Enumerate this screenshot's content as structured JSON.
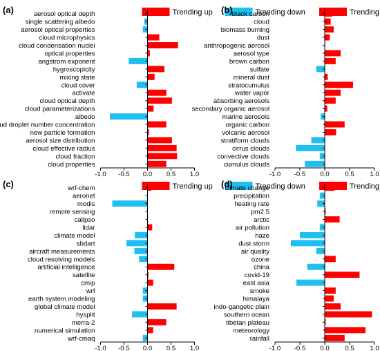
{
  "legend": {
    "up_label": "Trending up",
    "down_label": "Trending down"
  },
  "colors": {
    "up": "#ff0000",
    "down": "#1fbff2",
    "axis": "#000000"
  },
  "chart_data": [
    {
      "type": "bar",
      "orientation": "horizontal",
      "panel_label": "(a)",
      "xlim": [
        -1.0,
        1.0
      ],
      "xticks": [
        "-1.0",
        "-0.5",
        "0.0",
        "0.5",
        "1.0"
      ],
      "categories": [
        "aerosol optical depth",
        "single scattering albedo",
        "aerosol optical properties",
        "cloud microphysics",
        "cloud condensation nuclei",
        "optical properties",
        "angstrom exponent",
        "hygroscopicity",
        "mixing state",
        "cloud cover",
        "activate",
        "cloud optical depth",
        "cloud parameterizations",
        "albedo",
        "cloud droplet number concentration",
        "new particle formation",
        "aerosol size distribution",
        "cloud effective radius",
        "cloud fraction",
        "cloud properties"
      ],
      "values": [
        -0.01,
        -0.07,
        -0.1,
        0.25,
        0.65,
        0.05,
        -0.4,
        0.36,
        0.15,
        -0.23,
        0.4,
        0.52,
        0.13,
        -0.8,
        0.4,
        0.03,
        0.52,
        0.62,
        0.63,
        0.4
      ]
    },
    {
      "type": "bar",
      "orientation": "horizontal",
      "panel_label": "(b)",
      "xlim": [
        -1.0,
        1.0
      ],
      "xticks": [
        "-1.0",
        "-0.5",
        "0.0",
        "0.5",
        "1.0"
      ],
      "categories": [
        "black carbon",
        "cloud",
        "biomass burning",
        "dust",
        "anthropogenic aerosol",
        "aerosol type",
        "brown carbon",
        "sulfate",
        "mineral dust",
        "stratocumulus",
        "water vapor",
        "absorbing aerosols",
        "secondary organic aerosol",
        "marine aerosols",
        "organic carbon",
        "volcanic aerosol",
        "stratiform clouds",
        "cirrus clouds",
        "convective clouds",
        "cumulus clouds"
      ],
      "values": [
        0.15,
        0.12,
        0.18,
        0.1,
        0.0,
        0.32,
        0.22,
        -0.17,
        0.06,
        0.57,
        0.32,
        0.22,
        0.05,
        -0.08,
        0.4,
        0.23,
        -0.27,
        -0.58,
        -0.1,
        -0.4
      ]
    },
    {
      "type": "bar",
      "orientation": "horizontal",
      "panel_label": "(c)",
      "xlim": [
        -1.0,
        1.0
      ],
      "xticks": [
        "-1.0",
        "-0.5",
        "0.0",
        "0.5",
        "1.0"
      ],
      "categories": [
        "wrf-chem",
        "aeronet",
        "modis",
        "remote sensing",
        "calipso",
        "lidar",
        "climate model",
        "sbdart",
        "aircraft measurements",
        "cloud resolving models",
        "artificial intelligence",
        "satellite",
        "cmip",
        "wrf",
        "earth system modeling",
        "global climate model",
        "hysplit",
        "merra-2",
        "numerical simulation",
        "wrf-cmaq"
      ],
      "values": [
        0.08,
        -0.01,
        -0.75,
        -0.01,
        0.01,
        0.1,
        -0.27,
        -0.45,
        -0.28,
        -0.18,
        0.57,
        0.02,
        0.12,
        -0.1,
        -0.1,
        0.62,
        -0.33,
        0.4,
        0.12,
        -0.1
      ]
    },
    {
      "type": "bar",
      "orientation": "horizontal",
      "panel_label": "(d)",
      "xlim": [
        -1.0,
        1.0
      ],
      "xticks": [
        "-1.0",
        "-0.5",
        "0.0",
        "0.5",
        "1.0"
      ],
      "categories": [
        "climate change",
        "precipitation",
        "heating rate",
        "pm2.5",
        "arctic",
        "air pollution",
        "haze",
        "dust storm",
        "air quality",
        "ozone",
        "china",
        "covid-19",
        "east asia",
        "smoke",
        "himalaya",
        "indo-gangetic plain",
        "southern ocean",
        "tibetan plateau",
        "meteorology",
        "rainfall"
      ],
      "values": [
        0.2,
        -0.1,
        -0.15,
        0.02,
        0.3,
        -0.1,
        -0.5,
        -0.68,
        -0.17,
        0.22,
        -0.35,
        0.7,
        -0.57,
        0.22,
        0.18,
        0.32,
        0.95,
        0.02,
        0.82,
        0.4
      ]
    }
  ]
}
